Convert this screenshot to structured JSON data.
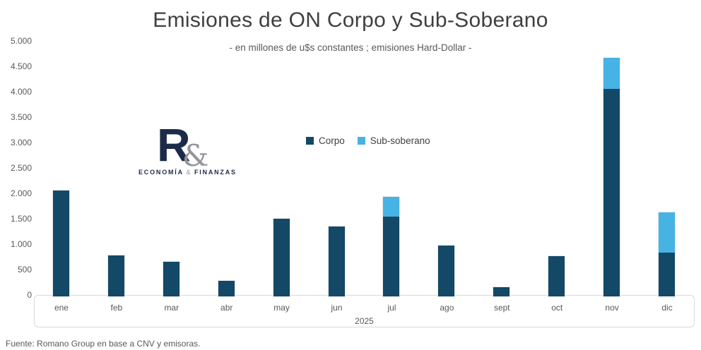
{
  "title": "Emisiones de ON Corpo y Sub-Soberano",
  "subtitle": "- en millones de u$s constantes ; emisiones Hard-Dollar -",
  "footer": "Fuente: Romano Group en base a CNV y emisoras.",
  "logo": {
    "letter": "R",
    "ampersand": "&",
    "caption_left": "ECONOMÍA",
    "caption_amp": "&",
    "caption_right": "FINANZAS"
  },
  "colors": {
    "corpo": "#134866",
    "sub_soberano": "#47b2e4",
    "title_text": "#3f3f3f",
    "axis_text": "#595959",
    "axis_border": "#d9d9d9",
    "bar_stroke": "#e7eaec",
    "logo_navy": "#1c2b4a",
    "logo_gray": "#939598"
  },
  "chart_data": {
    "type": "bar",
    "stacked": true,
    "title": "Emisiones de ON Corpo y Sub-Soberano",
    "subtitle": "- en millones de u$s constantes ; emisiones Hard-Dollar -",
    "xlabel": "2025",
    "ylabel": "",
    "categories": [
      "ene",
      "feb",
      "mar",
      "abr",
      "may",
      "jun",
      "jul",
      "ago",
      "sept",
      "oct",
      "nov",
      "dic"
    ],
    "series": [
      {
        "name": "Corpo",
        "color": "#134866",
        "values": [
          2050,
          775,
          640,
          265,
          1490,
          1340,
          1540,
          970,
          150,
          760,
          4050,
          830
        ]
      },
      {
        "name": "Sub-soberano",
        "color": "#47b2e4",
        "values": [
          0,
          0,
          0,
          0,
          0,
          0,
          390,
          0,
          0,
          0,
          610,
          795
        ]
      }
    ],
    "ylim": [
      0,
      5000
    ],
    "ytick_step": 500,
    "ytick_labels": [
      "0",
      "500",
      "1.000",
      "1.500",
      "2.000",
      "2.500",
      "3.000",
      "3.500",
      "4.000",
      "4.500",
      "5.000"
    ],
    "grid": false,
    "legend_position": "upper-center",
    "legend": [
      {
        "label": "Corpo",
        "color": "#134866"
      },
      {
        "label": "Sub-soberano",
        "color": "#47b2e4"
      }
    ],
    "year_label": "2025"
  }
}
